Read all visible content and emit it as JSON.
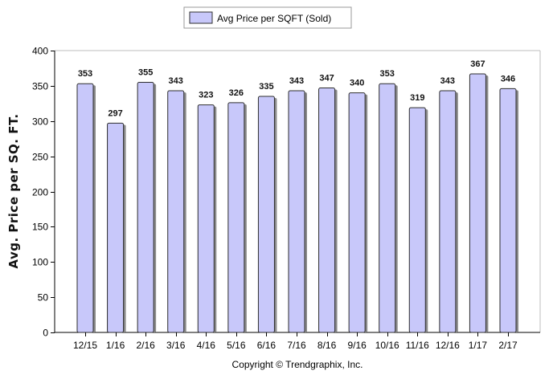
{
  "chart_data": {
    "type": "bar",
    "title": "",
    "xlabel": "",
    "ylabel": "Avg. Price per SQ. FT.",
    "ylim": [
      0,
      400
    ],
    "y_ticks": [
      0,
      50,
      100,
      150,
      200,
      250,
      300,
      350,
      400
    ],
    "grid": false,
    "legend_position": "top-center",
    "categories": [
      "12/15",
      "1/16",
      "2/16",
      "3/16",
      "4/16",
      "5/16",
      "6/16",
      "7/16",
      "8/16",
      "9/16",
      "10/16",
      "11/16",
      "12/16",
      "1/17",
      "2/17"
    ],
    "series": [
      {
        "name": "Avg Price per SQFT (Sold)",
        "color": "#c8c8fa",
        "values": [
          353,
          297,
          355,
          343,
          323,
          326,
          335,
          343,
          347,
          340,
          353,
          319,
          343,
          367,
          346
        ]
      }
    ]
  },
  "legend": {
    "label": "Avg Price per SQFT (Sold)"
  },
  "footer": {
    "copyright": "Copyright © Trendgraphix, Inc."
  }
}
